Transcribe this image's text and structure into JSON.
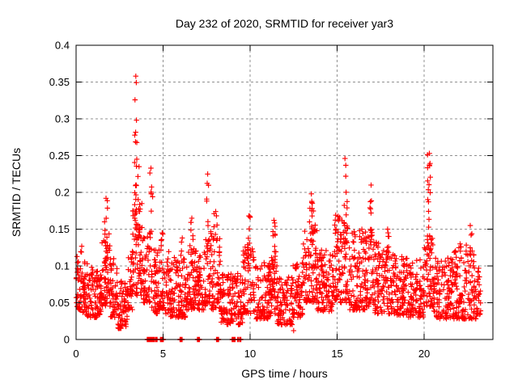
{
  "chart_data": {
    "type": "scatter",
    "title": "Day 232 of 2020, SRMTID for receiver yar3",
    "xlabel": "GPS time / hours",
    "ylabel": "SRMTID / TECUs",
    "xlim": [
      0,
      23.95
    ],
    "ylim": [
      0,
      0.4
    ],
    "xticks": {
      "values": [
        0,
        5,
        10,
        15,
        20
      ],
      "labels": [
        "0",
        "5",
        "10",
        "15",
        "20"
      ]
    },
    "yticks": {
      "values": [
        0,
        0.05,
        0.1,
        0.15,
        0.2,
        0.25,
        0.3,
        0.35,
        0.4
      ],
      "labels": [
        "0",
        "0.05",
        "0.1",
        "0.15",
        "0.2",
        "0.25",
        "0.3",
        "0.35",
        "0.4"
      ]
    },
    "grid": {
      "visible": true,
      "style": "dashed",
      "color": "#909090"
    },
    "legend": "none",
    "marker": {
      "shape": "plus",
      "color": "#ff0000",
      "size": 6.5
    },
    "colors": {
      "background": "#ffffff",
      "text": "#000000",
      "border": "#000000"
    },
    "data_span_hours": [
      0,
      23.25
    ],
    "peak_value": 0.358,
    "peak_time_hours": 3.43,
    "series_model": {
      "seed": 20200232,
      "band_bins_format": [
        "x_start",
        "x_end",
        "count",
        "y_min",
        "y_max",
        "y_mode"
      ],
      "band_bins": [
        [
          0.0,
          0.35,
          40,
          0.04,
          0.13,
          0.07
        ],
        [
          0.35,
          0.9,
          60,
          0.03,
          0.11,
          0.06
        ],
        [
          0.9,
          1.45,
          62,
          0.03,
          0.095,
          0.055
        ],
        [
          1.45,
          1.95,
          55,
          0.045,
          0.15,
          0.08
        ],
        [
          1.95,
          2.35,
          45,
          0.03,
          0.11,
          0.06
        ],
        [
          2.35,
          2.95,
          66,
          0.015,
          0.08,
          0.045
        ],
        [
          2.95,
          3.25,
          34,
          0.04,
          0.12,
          0.07
        ],
        [
          3.25,
          3.8,
          62,
          0.06,
          0.185,
          0.1
        ],
        [
          3.8,
          4.35,
          60,
          0.05,
          0.16,
          0.09
        ],
        [
          4.35,
          5.4,
          110,
          0.035,
          0.125,
          0.065
        ],
        [
          5.4,
          6.3,
          96,
          0.03,
          0.115,
          0.06
        ],
        [
          6.3,
          6.95,
          70,
          0.04,
          0.13,
          0.07
        ],
        [
          6.95,
          7.45,
          54,
          0.04,
          0.12,
          0.065
        ],
        [
          7.45,
          7.75,
          34,
          0.05,
          0.15,
          0.085
        ],
        [
          7.75,
          8.3,
          58,
          0.04,
          0.145,
          0.075
        ],
        [
          8.3,
          9.6,
          135,
          0.02,
          0.09,
          0.05
        ],
        [
          9.6,
          10.25,
          68,
          0.035,
          0.13,
          0.07
        ],
        [
          10.25,
          11.2,
          100,
          0.028,
          0.105,
          0.058
        ],
        [
          11.2,
          11.55,
          38,
          0.035,
          0.12,
          0.068
        ],
        [
          11.55,
          12.45,
          92,
          0.02,
          0.085,
          0.048
        ],
        [
          12.45,
          13.05,
          62,
          0.03,
          0.105,
          0.058
        ],
        [
          13.05,
          13.85,
          85,
          0.05,
          0.16,
          0.085
        ],
        [
          13.85,
          14.85,
          105,
          0.038,
          0.125,
          0.068
        ],
        [
          14.85,
          15.7,
          90,
          0.05,
          0.17,
          0.09
        ],
        [
          15.7,
          16.6,
          95,
          0.04,
          0.15,
          0.078
        ],
        [
          16.6,
          17.15,
          58,
          0.045,
          0.15,
          0.08
        ],
        [
          17.15,
          18.1,
          100,
          0.035,
          0.135,
          0.07
        ],
        [
          18.1,
          19.1,
          105,
          0.032,
          0.12,
          0.065
        ],
        [
          19.1,
          19.95,
          88,
          0.03,
          0.11,
          0.06
        ],
        [
          19.95,
          20.5,
          58,
          0.045,
          0.155,
          0.085
        ],
        [
          20.5,
          21.7,
          125,
          0.028,
          0.115,
          0.06
        ],
        [
          21.7,
          23.0,
          135,
          0.028,
          0.13,
          0.062
        ],
        [
          23.0,
          23.25,
          26,
          0.03,
          0.1,
          0.055
        ]
      ],
      "spike_columns_format": [
        "x_center",
        "x_half_width",
        "y_base",
        "y_top",
        "count"
      ],
      "spike_columns": [
        [
          1.72,
          0.1,
          0.095,
          0.192,
          16
        ],
        [
          3.43,
          0.07,
          0.15,
          0.358,
          24
        ],
        [
          3.62,
          0.07,
          0.12,
          0.235,
          10
        ],
        [
          4.3,
          0.12,
          0.13,
          0.233,
          10
        ],
        [
          4.95,
          0.08,
          0.1,
          0.145,
          6
        ],
        [
          6.1,
          0.08,
          0.095,
          0.138,
          6
        ],
        [
          6.65,
          0.1,
          0.1,
          0.165,
          10
        ],
        [
          7.56,
          0.06,
          0.12,
          0.225,
          9
        ],
        [
          8.02,
          0.1,
          0.11,
          0.174,
          8
        ],
        [
          9.95,
          0.08,
          0.1,
          0.168,
          10
        ],
        [
          11.37,
          0.08,
          0.1,
          0.162,
          10
        ],
        [
          13.52,
          0.12,
          0.13,
          0.198,
          14
        ],
        [
          15.45,
          0.13,
          0.13,
          0.246,
          18
        ],
        [
          16.95,
          0.07,
          0.115,
          0.21,
          12
        ],
        [
          17.9,
          0.1,
          0.1,
          0.15,
          7
        ],
        [
          20.3,
          0.11,
          0.12,
          0.253,
          22
        ],
        [
          22.65,
          0.09,
          0.1,
          0.155,
          8
        ]
      ],
      "zero_clusters_format": [
        "x_hours",
        "count"
      ],
      "zero_clusters": [
        [
          4.17,
          4
        ],
        [
          4.3,
          2
        ],
        [
          4.45,
          3
        ],
        [
          4.62,
          2
        ],
        [
          4.93,
          4
        ],
        [
          6.03,
          3
        ],
        [
          7.03,
          3
        ],
        [
          8.13,
          3
        ],
        [
          9.05,
          4
        ],
        [
          9.3,
          1
        ],
        [
          9.43,
          2
        ]
      ],
      "isolated_points": [
        [
          12.5,
          0.012
        ]
      ]
    }
  }
}
